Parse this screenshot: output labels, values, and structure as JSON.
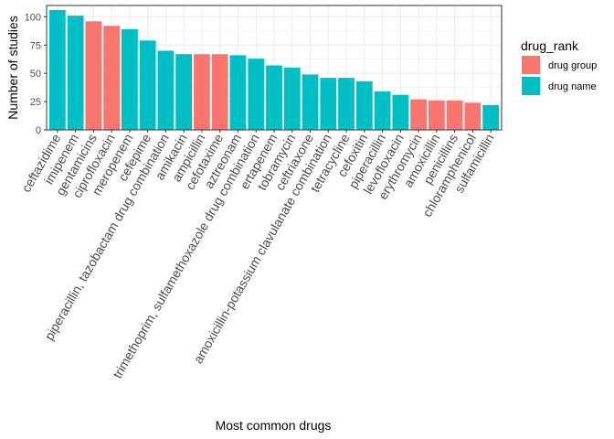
{
  "chart_data": {
    "type": "bar",
    "xlabel": "Most common drugs",
    "ylabel": "Number of studies",
    "ylim": [
      0,
      110
    ],
    "yticks": [
      0,
      25,
      50,
      75,
      100
    ],
    "grid": true,
    "legend": {
      "title": "drug_rank",
      "position": "right",
      "entries": [
        {
          "label": "drug group",
          "color": "#F8766D"
        },
        {
          "label": "drug name",
          "color": "#00BFC4"
        }
      ]
    },
    "bars": [
      {
        "category": "ceftazidime",
        "value": 106,
        "group": "drug name"
      },
      {
        "category": "imipenem",
        "value": 101,
        "group": "drug name"
      },
      {
        "category": "gentamicins",
        "value": 96,
        "group": "drug group"
      },
      {
        "category": "ciprofloxacin",
        "value": 92,
        "group": "drug group"
      },
      {
        "category": "meropenem",
        "value": 89,
        "group": "drug name"
      },
      {
        "category": "cefepime",
        "value": 79,
        "group": "drug name"
      },
      {
        "category": "piperacillin, tazobactam drug combination",
        "value": 70,
        "group": "drug name"
      },
      {
        "category": "amikacin",
        "value": 67,
        "group": "drug name"
      },
      {
        "category": "ampicillin",
        "value": 67,
        "group": "drug group"
      },
      {
        "category": "cefotaxime",
        "value": 67,
        "group": "drug group"
      },
      {
        "category": "aztreonam",
        "value": 66,
        "group": "drug name"
      },
      {
        "category": "trimethoprim, sulfamethoxazole drug combination",
        "value": 63,
        "group": "drug name"
      },
      {
        "category": "ertapenem",
        "value": 57,
        "group": "drug name"
      },
      {
        "category": "tobramycin",
        "value": 55,
        "group": "drug name"
      },
      {
        "category": "ceftriaxone",
        "value": 49,
        "group": "drug name"
      },
      {
        "category": "amoxicillin-potassium clavulanate combination",
        "value": 46,
        "group": "drug name"
      },
      {
        "category": "tetracycline",
        "value": 46,
        "group": "drug name"
      },
      {
        "category": "cefoxitin",
        "value": 43,
        "group": "drug name"
      },
      {
        "category": "piperacillin",
        "value": 34,
        "group": "drug name"
      },
      {
        "category": "levofloxacin",
        "value": 31,
        "group": "drug name"
      },
      {
        "category": "erythromycin",
        "value": 27,
        "group": "drug group"
      },
      {
        "category": "amoxicillin",
        "value": 26,
        "group": "drug group"
      },
      {
        "category": "penicillins",
        "value": 26,
        "group": "drug group"
      },
      {
        "category": "chloramphenicol",
        "value": 24,
        "group": "drug group"
      },
      {
        "category": "sulfamicillin",
        "value": 22,
        "group": "drug name"
      }
    ]
  }
}
